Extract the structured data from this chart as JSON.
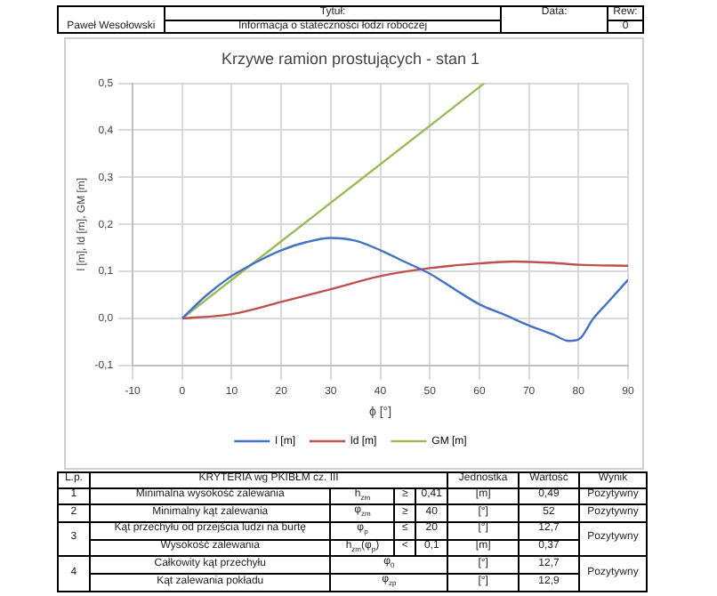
{
  "chart_data": {
    "type": "line",
    "title": "Krzywe ramion prostujących - stan 1",
    "xlabel": "ϕ [°]",
    "ylabel": "l [m], ld [m], GM [m]",
    "series": [
      {
        "name": "l [m]",
        "color": "#4472c4",
        "x": [
          0,
          5,
          10,
          15,
          20,
          25,
          30,
          35,
          40,
          45,
          50,
          55,
          60,
          65,
          70,
          75,
          78,
          80,
          83,
          86,
          90
        ],
        "values": [
          0,
          0.05,
          0.09,
          0.12,
          0.145,
          0.162,
          0.171,
          0.165,
          0.145,
          0.12,
          0.095,
          0.062,
          0.03,
          0.008,
          -0.015,
          -0.035,
          -0.048,
          -0.045,
          0,
          0.035,
          0.082
        ]
      },
      {
        "name": "ld [m]",
        "color": "#c0504d",
        "x": [
          0,
          10,
          20,
          30,
          40,
          50,
          60,
          67,
          75,
          80,
          90
        ],
        "values": [
          0,
          0.009,
          0.035,
          0.062,
          0.09,
          0.107,
          0.117,
          0.121,
          0.118,
          0.114,
          0.112
        ]
      },
      {
        "name": "GM [m]",
        "color": "#9bbb59",
        "x": [
          0,
          61
        ],
        "values": [
          0,
          0.5
        ]
      }
    ],
    "xlim": [
      -10,
      90
    ],
    "xticks": [
      -10,
      0,
      10,
      20,
      30,
      40,
      50,
      60,
      70,
      80,
      90
    ],
    "ylim": [
      -0.1,
      0.5
    ],
    "yticks": [
      {
        "value": -0.1,
        "label": "-0,1"
      },
      {
        "value": 0,
        "label": "0,0"
      },
      {
        "value": 0.1,
        "label": "0,1"
      },
      {
        "value": 0.2,
        "label": "0,2"
      },
      {
        "value": 0.3,
        "label": "0,3"
      },
      {
        "value": 0.4,
        "label": "0,4"
      },
      {
        "value": 0.5,
        "label": "0,5"
      }
    ],
    "grid": true,
    "legend": "bottom",
    "marker": "none",
    "line_style": "solid",
    "annotations": [
      "Paweł Wesołowski",
      "Tytuł:",
      "Informacja o stateczności łodzi roboczej",
      "Data:",
      "Rew:",
      "0",
      "L.p.",
      "KRYTERIA wg PKIBŁM cz. III",
      "Jednostka",
      "Wartość",
      "Wynik",
      "1",
      "Minimalna wysokość zalewania",
      "h$_{zm}$",
      "≥",
      "0,41",
      "[m]",
      "0,49",
      "Pozytywny",
      "2",
      "Minimalny kąt zalewania",
      "φ$_{zm}$",
      "≥",
      "40",
      "[°]",
      "52",
      "Pozytywny",
      "3",
      "Kąt przechyłu od przejścia ludzi na burtę",
      "φ$_{p}$",
      "≤",
      "20",
      "[°]",
      "12,7",
      "Pozytywny",
      "Wysokość zalewania",
      "h$_{zm}$(φ$_{p}$)",
      "<",
      "0,1",
      "[m]",
      "0,37",
      "4",
      "Całkowity kąt przechyłu",
      "φ$_{0}$",
      "[°]",
      "12,7",
      "Pozytywny",
      "Kąt zalewania pokładu",
      "φ$_{zp}$",
      "[°]",
      "12,9"
    ]
  }
}
